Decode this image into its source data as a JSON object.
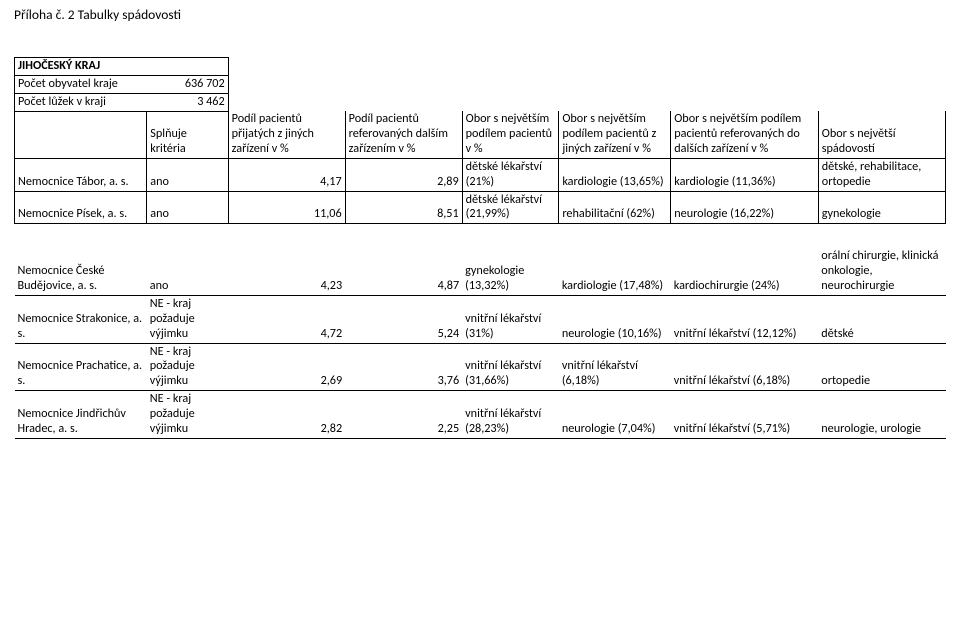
{
  "attachment_title": "Příloha č. 2 Tabulky spádovosti",
  "region_label": "JIHOČESKÝ KRAJ",
  "pop_label": "Počet obyvatel kraje",
  "pop_value": "636 702",
  "beds_label": "Počet lůžek v kraji",
  "beds_value": "3 462",
  "headers": {
    "h2": "Splňuje kritéria",
    "h3": "Podíl pacientů přijatých z jiných zařízení v %",
    "h4": "Podíl pacientů referovaných dalším zařízením v %",
    "h5": "Obor s největším podílem pacientů v %",
    "h6": "Obor s největším podílem pacientů z jiných zařízení v %",
    "h7": "Obor s největším podílem pacientů referovaných do dalších zařízení v %",
    "h8": "Obor s největší spádovostí"
  },
  "rows_top": [
    {
      "name": "Nemocnice Tábor, a. s.",
      "meets": "ano",
      "in_pct": "4,17",
      "out_pct": "2,89",
      "top_share": "dětské lékařství (21%)",
      "top_in": "kardiologie (13,65%)",
      "top_out": "kardiologie (11,36%)",
      "top_catch": "dětské, rehabilitace, ortopedie"
    },
    {
      "name": "Nemocnice Písek, a. s.",
      "meets": "ano",
      "in_pct": "11,06",
      "out_pct": "8,51",
      "top_share": "dětské lékařství (21,99%)",
      "top_in": "rehabilitační (62%)",
      "top_out": "neurologie (16,22%)",
      "top_catch": "gynekologie"
    }
  ],
  "rows_bottom": [
    {
      "name": "Nemocnice České Budějovice, a. s.",
      "meets": "ano",
      "in_pct": "4,23",
      "out_pct": "4,87",
      "top_share": "gynekologie (13,32%)",
      "top_in": "kardiologie (17,48%)",
      "top_out": "kardiochirurgie (24%)",
      "top_catch": "orální chirurgie, klinická onkologie, neurochirurgie"
    },
    {
      "name": "Nemocnice Strakonice, a. s.",
      "meets": "NE - kraj požaduje výjimku",
      "in_pct": "4,72",
      "out_pct": "5,24",
      "top_share": "vnitřní lékařství (31%)",
      "top_in": "neurologie (10,16%)",
      "top_out": "vnitřní lékařství (12,12%)",
      "top_catch": "dětské"
    },
    {
      "name": "Nemocnice Prachatice, a. s.",
      "meets": "NE - kraj požaduje výjimku",
      "in_pct": "2,69",
      "out_pct": "3,76",
      "top_share": "vnitřní lékařství (31,66%)",
      "top_in": "vnitřní lékařství (6,18%)",
      "top_out": "vnitřní lékařství (6,18%)",
      "top_catch": "ortopedie"
    },
    {
      "name": "Nemocnice Jindřichův Hradec, a. s.",
      "meets": "NE - kraj požaduje výjimku",
      "in_pct": "2,82",
      "out_pct": "2,25",
      "top_share": "vnitřní lékařství (28,23%)",
      "top_in": "neurologie (7,04%)",
      "top_out": "vnitřní lékařství (5,71%)",
      "top_catch": "neurologie, urologie"
    }
  ]
}
